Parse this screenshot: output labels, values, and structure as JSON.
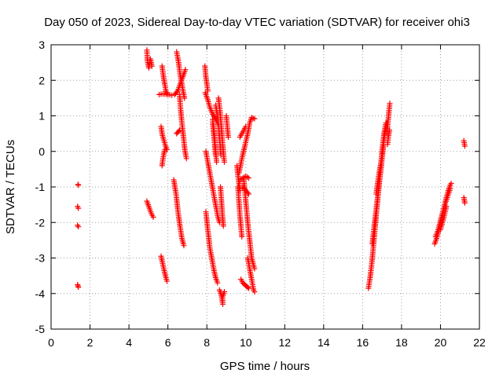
{
  "chart_data": {
    "type": "scatter",
    "title": "Day 050 of 2023, Sidereal Day-to-day VTEC variation (SDTVAR) for receiver ohi3",
    "xlabel": "GPS time / hours",
    "ylabel": "SDTVAR / TECUs",
    "xlim": [
      0,
      22
    ],
    "ylim": [
      -5,
      3
    ],
    "xticks": [
      "0",
      "2",
      "4",
      "6",
      "8",
      "10",
      "12",
      "14",
      "16",
      "18",
      "20",
      "22"
    ],
    "yticks": [
      "3",
      "2",
      "1",
      "0",
      "-1",
      "-2",
      "-3",
      "-4",
      "-5"
    ],
    "grid": true,
    "marker": "+",
    "series": [
      {
        "name": "SDTVAR",
        "color": "#ff0000",
        "segments": [
          [
            [
              1.38,
              -0.93
            ],
            [
              1.4,
              -0.95
            ]
          ],
          [
            [
              1.36,
              -1.55
            ],
            [
              1.4,
              -1.6
            ]
          ],
          [
            [
              1.36,
              -2.08
            ],
            [
              1.4,
              -2.12
            ]
          ],
          [
            [
              1.36,
              -3.75
            ],
            [
              1.4,
              -3.82
            ]
          ],
          [
            [
              4.92,
              2.85
            ],
            [
              4.95,
              2.55
            ],
            [
              5.02,
              2.35
            ],
            [
              5.1,
              2.6
            ],
            [
              5.18,
              2.4
            ]
          ],
          [
            [
              4.92,
              -1.4
            ],
            [
              5.05,
              -1.6
            ],
            [
              5.15,
              -1.75
            ],
            [
              5.25,
              -1.85
            ]
          ],
          [
            [
              5.55,
              1.6
            ],
            [
              5.75,
              1.62
            ],
            [
              6.0,
              1.6
            ],
            [
              6.2,
              1.58
            ]
          ],
          [
            [
              5.7,
              2.4
            ],
            [
              5.8,
              2.0
            ],
            [
              5.9,
              1.7
            ],
            [
              6.0,
              1.6
            ]
          ],
          [
            [
              5.65,
              0.7
            ],
            [
              5.72,
              0.45
            ],
            [
              5.8,
              0.3
            ],
            [
              5.88,
              0.15
            ],
            [
              5.95,
              0.05
            ]
          ],
          [
            [
              5.7,
              -0.4
            ],
            [
              5.75,
              -0.2
            ],
            [
              5.8,
              -0.05
            ],
            [
              5.85,
              0.05
            ]
          ],
          [
            [
              5.65,
              -2.95
            ],
            [
              5.75,
              -3.2
            ],
            [
              5.85,
              -3.45
            ],
            [
              5.95,
              -3.65
            ]
          ],
          [
            [
              6.45,
              2.8
            ],
            [
              6.55,
              2.5
            ],
            [
              6.62,
              2.2
            ],
            [
              6.7,
              1.95
            ],
            [
              6.78,
              1.7
            ],
            [
              6.85,
              1.5
            ]
          ],
          [
            [
              6.45,
              0.5
            ],
            [
              6.6,
              0.6
            ]
          ],
          [
            [
              6.35,
              1.6
            ],
            [
              6.5,
              1.7
            ],
            [
              6.6,
              1.85
            ],
            [
              6.7,
              2.0
            ],
            [
              6.8,
              2.15
            ],
            [
              6.9,
              2.3
            ]
          ],
          [
            [
              6.6,
              1.6
            ],
            [
              6.65,
              1.2
            ],
            [
              6.72,
              0.8
            ],
            [
              6.8,
              0.4
            ],
            [
              6.88,
              0.0
            ],
            [
              6.95,
              -0.2
            ]
          ],
          [
            [
              6.3,
              -0.8
            ],
            [
              6.42,
              -1.2
            ],
            [
              6.52,
              -1.7
            ],
            [
              6.62,
              -2.1
            ],
            [
              6.72,
              -2.45
            ],
            [
              6.82,
              -2.65
            ]
          ],
          [
            [
              7.9,
              2.4
            ],
            [
              7.95,
              2.1
            ],
            [
              8.0,
              1.9
            ],
            [
              8.05,
              1.7
            ]
          ],
          [
            [
              7.92,
              1.65
            ],
            [
              8.05,
              1.45
            ],
            [
              8.15,
              1.25
            ],
            [
              8.3,
              1.05
            ],
            [
              8.45,
              0.9
            ],
            [
              8.55,
              0.8
            ]
          ],
          [
            [
              8.3,
              0.8
            ],
            [
              8.35,
              0.5
            ],
            [
              8.4,
              0.2
            ],
            [
              8.45,
              -0.1
            ]
          ],
          [
            [
              8.6,
              1.5
            ],
            [
              8.68,
              1.1
            ],
            [
              8.74,
              0.7
            ],
            [
              8.8,
              0.3
            ],
            [
              8.86,
              -0.1
            ],
            [
              8.9,
              -0.3
            ]
          ],
          [
            [
              8.45,
              1.3
            ],
            [
              8.55,
              1.0
            ],
            [
              8.62,
              0.6
            ],
            [
              8.68,
              0.2
            ],
            [
              8.72,
              -0.1
            ]
          ],
          [
            [
              7.95,
              0.0
            ],
            [
              8.05,
              -0.3
            ],
            [
              8.15,
              -0.6
            ],
            [
              8.25,
              -0.9
            ],
            [
              8.35,
              -1.2
            ],
            [
              8.45,
              -1.5
            ],
            [
              8.55,
              -1.8
            ],
            [
              8.65,
              -2.0
            ]
          ],
          [
            [
              8.3,
              0.9
            ],
            [
              8.4,
              0.4
            ],
            [
              8.45,
              0.0
            ],
            [
              8.5,
              -0.3
            ]
          ],
          [
            [
              7.95,
              -1.7
            ],
            [
              8.05,
              -2.2
            ],
            [
              8.15,
              -2.7
            ],
            [
              8.25,
              -3.0
            ],
            [
              8.35,
              -3.3
            ],
            [
              8.45,
              -3.55
            ],
            [
              8.55,
              -3.7
            ]
          ],
          [
            [
              8.7,
              -1.0
            ],
            [
              8.75,
              -1.4
            ],
            [
              8.8,
              -1.8
            ],
            [
              8.85,
              -2.1
            ]
          ],
          [
            [
              8.65,
              -3.9
            ],
            [
              8.75,
              -4.05
            ],
            [
              8.82,
              -4.3
            ],
            [
              8.8,
              -4.1
            ],
            [
              8.9,
              -3.95
            ]
          ],
          [
            [
              9.0,
              1.0
            ],
            [
              9.05,
              0.7
            ],
            [
              9.1,
              0.4
            ]
          ],
          [
            [
              9.55,
              -0.4
            ],
            [
              9.6,
              -0.7
            ],
            [
              9.65,
              -0.9
            ],
            [
              9.7,
              -1.1
            ]
          ],
          [
            [
              9.6,
              -1.0
            ],
            [
              9.65,
              -1.4
            ],
            [
              9.7,
              -1.8
            ],
            [
              9.75,
              -2.1
            ],
            [
              9.8,
              -2.4
            ]
          ],
          [
            [
              9.65,
              -0.6
            ],
            [
              9.8,
              -0.2
            ],
            [
              9.95,
              0.15
            ],
            [
              10.1,
              0.5
            ],
            [
              10.2,
              0.8
            ],
            [
              10.3,
              0.95
            ],
            [
              10.45,
              0.92
            ]
          ],
          [
            [
              9.7,
              0.4
            ],
            [
              9.8,
              0.5
            ],
            [
              9.9,
              0.6
            ],
            [
              10.0,
              0.7
            ]
          ],
          [
            [
              9.7,
              -0.8
            ],
            [
              9.85,
              -0.75
            ],
            [
              10.0,
              -0.7
            ],
            [
              10.15,
              -0.75
            ]
          ],
          [
            [
              9.9,
              -0.8
            ],
            [
              10.0,
              -1.4
            ],
            [
              10.1,
              -2.0
            ],
            [
              10.2,
              -2.5
            ],
            [
              10.3,
              -3.0
            ],
            [
              10.45,
              -3.3
            ]
          ],
          [
            [
              9.75,
              -3.6
            ],
            [
              9.85,
              -3.7
            ],
            [
              9.95,
              -3.75
            ],
            [
              10.05,
              -3.8
            ],
            [
              10.15,
              -3.85
            ]
          ],
          [
            [
              10.1,
              -3.0
            ],
            [
              10.2,
              -3.3
            ],
            [
              10.3,
              -3.6
            ],
            [
              10.4,
              -3.9
            ],
            [
              10.45,
              -3.95
            ]
          ],
          [
            [
              9.85,
              -1.0
            ],
            [
              10.0,
              -1.1
            ],
            [
              10.15,
              -1.2
            ]
          ],
          [
            [
              16.3,
              -3.85
            ],
            [
              16.4,
              -3.5
            ],
            [
              16.5,
              -3.0
            ],
            [
              16.6,
              -2.4
            ],
            [
              16.7,
              -1.8
            ],
            [
              16.8,
              -1.2
            ],
            [
              16.9,
              -0.6
            ],
            [
              17.0,
              0.0
            ],
            [
              17.1,
              0.5
            ],
            [
              17.2,
              0.8
            ]
          ],
          [
            [
              16.5,
              -2.6
            ],
            [
              16.62,
              -2.0
            ],
            [
              16.75,
              -1.4
            ],
            [
              16.88,
              -0.8
            ],
            [
              17.0,
              -0.2
            ],
            [
              17.12,
              0.4
            ],
            [
              17.25,
              0.8
            ]
          ],
          [
            [
              16.7,
              -1.2
            ],
            [
              16.82,
              -0.7
            ],
            [
              16.95,
              -0.3
            ],
            [
              17.05,
              0.1
            ]
          ],
          [
            [
              17.25,
              0.5
            ],
            [
              17.3,
              0.8
            ],
            [
              17.35,
              1.1
            ],
            [
              17.4,
              1.35
            ]
          ],
          [
            [
              17.28,
              0.2
            ],
            [
              17.32,
              0.4
            ],
            [
              17.38,
              0.6
            ]
          ],
          [
            [
              19.7,
              -2.6
            ],
            [
              19.8,
              -2.45
            ],
            [
              19.9,
              -2.25
            ],
            [
              20.0,
              -2.05
            ],
            [
              20.1,
              -1.8
            ],
            [
              20.2,
              -1.55
            ],
            [
              20.3,
              -1.3
            ],
            [
              20.4,
              -1.1
            ],
            [
              20.5,
              -0.95
            ],
            [
              20.55,
              -0.9
            ]
          ],
          [
            [
              19.75,
              -2.4
            ],
            [
              19.88,
              -2.2
            ],
            [
              20.0,
              -1.95
            ],
            [
              20.12,
              -1.7
            ],
            [
              20.25,
              -1.45
            ],
            [
              20.38,
              -1.25
            ],
            [
              20.5,
              -1.05
            ]
          ],
          [
            [
              20.0,
              -2.2
            ],
            [
              20.1,
              -2.0
            ],
            [
              20.2,
              -1.8
            ],
            [
              20.3,
              -1.55
            ]
          ],
          [
            [
              21.2,
              0.3
            ],
            [
              21.25,
              0.15
            ]
          ],
          [
            [
              21.2,
              -1.3
            ],
            [
              21.25,
              -1.45
            ]
          ]
        ]
      }
    ]
  }
}
